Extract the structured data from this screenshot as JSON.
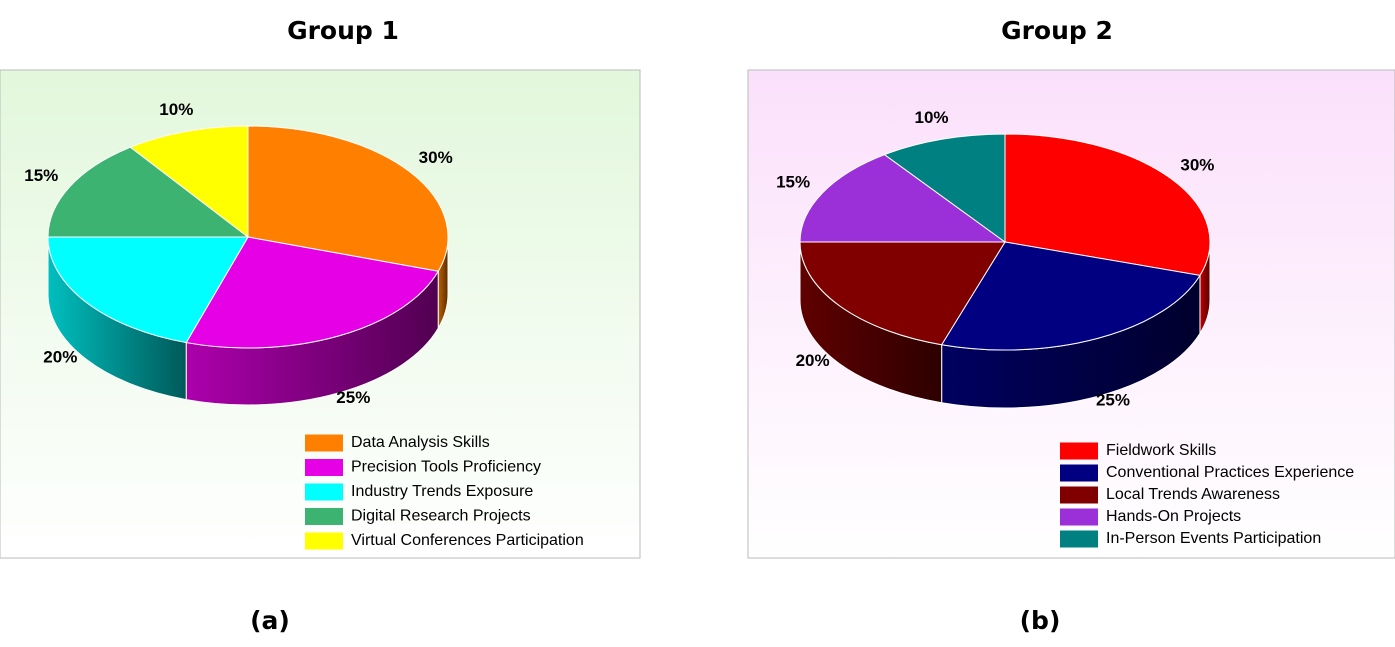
{
  "chart_data": [
    {
      "type": "pie",
      "title": "Group 1",
      "caption": "(a)",
      "categories": [
        "Data Analysis Skills",
        "Precision Tools Proficiency",
        "Industry Trends Exposure",
        "Digital Research Projects",
        "Virtual Conferences Participation"
      ],
      "values": [
        30,
        25,
        20,
        15,
        10
      ],
      "value_labels": [
        "30%",
        "25%",
        "20%",
        "15%",
        "10%"
      ],
      "colors": [
        "#ff8000",
        "#e600e6",
        "#00ffff",
        "#3cb371",
        "#ffff00"
      ]
    },
    {
      "type": "pie",
      "title": "Group 2",
      "caption": "(b)",
      "categories": [
        "Fieldwork Skills",
        "Conventional Practices Experience",
        "Local Trends Awareness",
        "Hands-On Projects",
        "In-Person Events Participation"
      ],
      "values": [
        30,
        25,
        20,
        15,
        10
      ],
      "value_labels": [
        "30%",
        "25%",
        "20%",
        "15%",
        "10%"
      ],
      "colors": [
        "#ff0000",
        "#000080",
        "#800000",
        "#9b30d9",
        "#008080"
      ]
    }
  ]
}
